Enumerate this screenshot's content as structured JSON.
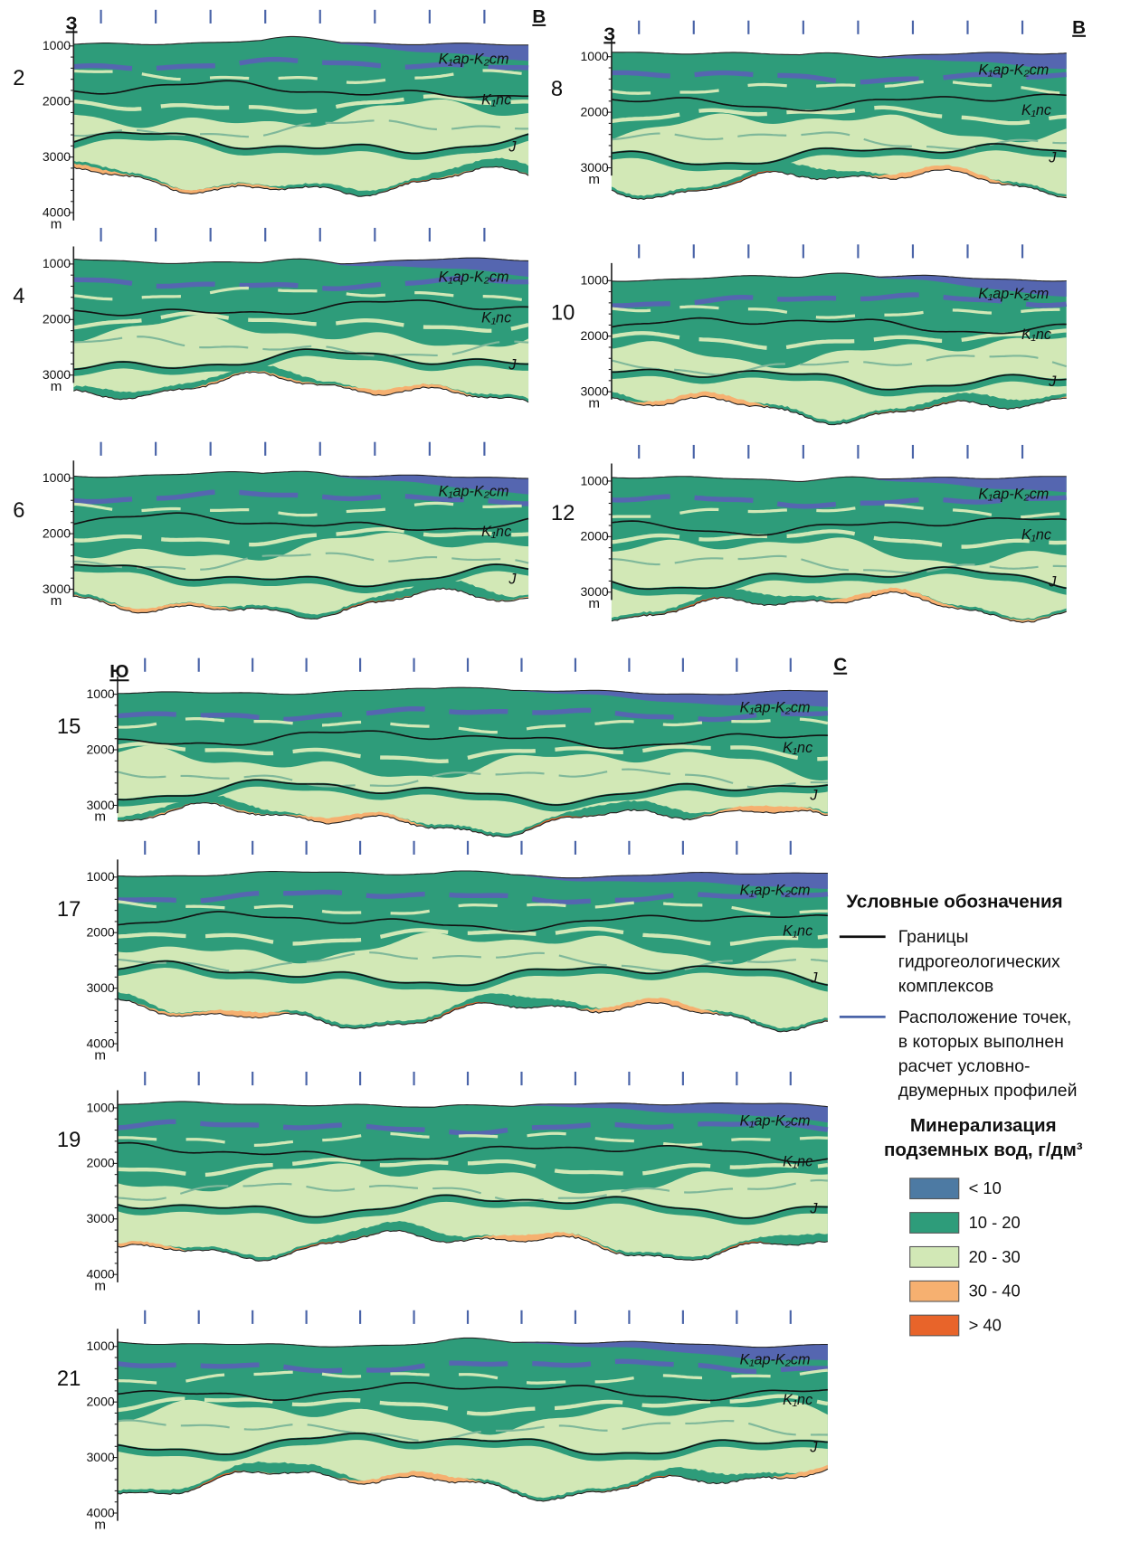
{
  "panels": [
    {
      "number": "2",
      "left_direction": "З",
      "right_direction": "В",
      "depth_ticks": [
        1000,
        2000,
        3000,
        4000
      ],
      "depth_unit": "m",
      "layers": [
        "K₁ap-K₂cm",
        "K₁nc",
        "J"
      ]
    },
    {
      "number": "8",
      "left_direction": "З",
      "right_direction": "В",
      "depth_ticks": [
        1000,
        2000,
        3000
      ],
      "depth_unit": "m",
      "layers": [
        "K₁ap-K₂cm",
        "K₁nc",
        "J"
      ]
    },
    {
      "number": "4",
      "depth_ticks": [
        1000,
        2000,
        3000
      ],
      "depth_unit": "m",
      "layers": [
        "K₁ap-K₂cm",
        "K₁nc",
        "J"
      ]
    },
    {
      "number": "10",
      "depth_ticks": [
        1000,
        2000,
        3000
      ],
      "depth_unit": "m",
      "layers": [
        "K₁ap-K₂cm",
        "K₁nc",
        "J"
      ]
    },
    {
      "number": "6",
      "depth_ticks": [
        1000,
        2000,
        3000
      ],
      "depth_unit": "m",
      "layers": [
        "K₁ap-K₂cm",
        "K₁nc",
        "J"
      ]
    },
    {
      "number": "12",
      "depth_ticks": [
        1000,
        2000,
        3000
      ],
      "depth_unit": "m",
      "layers": [
        "K₁ap-K₂cm",
        "K₁nc",
        "J"
      ]
    },
    {
      "number": "15",
      "left_direction": "Ю",
      "right_direction": "С",
      "depth_ticks": [
        1000,
        2000,
        3000
      ],
      "depth_unit": "m",
      "layers": [
        "K₁ap-K₂cm",
        "K₁nc",
        "J"
      ]
    },
    {
      "number": "17",
      "depth_ticks": [
        1000,
        2000,
        3000,
        4000
      ],
      "depth_unit": "m",
      "layers": [
        "K₁ap-K₂cm",
        "K₁nc",
        "J"
      ]
    },
    {
      "number": "19",
      "depth_ticks": [
        1000,
        2000,
        3000,
        4000
      ],
      "depth_unit": "m",
      "layers": [
        "K₁ap-K₂cm",
        "K₁nc",
        "J"
      ]
    },
    {
      "number": "21",
      "depth_ticks": [
        1000,
        2000,
        3000,
        4000
      ],
      "depth_unit": "m",
      "layers": [
        "K₁ap-K₂cm",
        "K₁nc",
        "J"
      ]
    }
  ],
  "legend": {
    "title": "Условные обозначения",
    "boundaries": {
      "lines": [
        "Границы",
        "гидрогеологических",
        "комплексов"
      ],
      "color": "#111111"
    },
    "points": {
      "lines": [
        "Расположение точек,",
        "в которых выполнен",
        "расчет условно-",
        "двумерных профилей"
      ],
      "color": "#4a64a8"
    },
    "mineralization_title": [
      "Минерализация",
      "подземных вод, г/дм³"
    ],
    "classes": [
      {
        "label": "< 10",
        "color": "#4d7aa3"
      },
      {
        "label": "10 - 20",
        "color": "#2e9c7a"
      },
      {
        "label": "20 - 30",
        "color": "#d2e8b6"
      },
      {
        "label": "30 - 40",
        "color": "#f6b070"
      },
      {
        "label": "> 40",
        "color": "#e8642a"
      }
    ]
  }
}
